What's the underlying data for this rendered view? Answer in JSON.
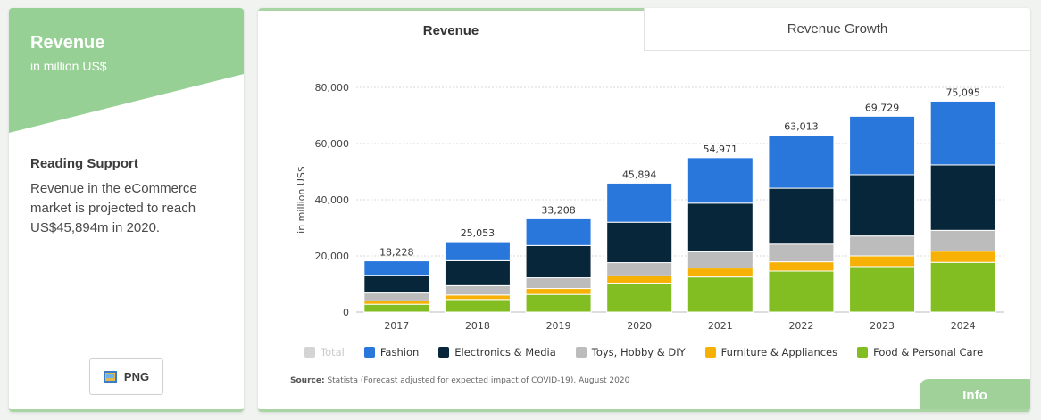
{
  "left_panel": {
    "title": "Revenue",
    "subtitle": "in million US$",
    "support_heading": "Reading Support",
    "support_text": "Revenue in the eCommerce market is projected to reach US$45,894m in 2020.",
    "png_label": "PNG",
    "banner_color": "#97d095"
  },
  "tabs": [
    {
      "label": "Revenue",
      "active": true
    },
    {
      "label": "Revenue Growth",
      "active": false
    }
  ],
  "source": {
    "label": "Source:",
    "text": "Statista (Forecast adjusted for expected impact of COVID-19), August 2020"
  },
  "info_label": "Info",
  "chart_data": {
    "type": "bar",
    "stacked": true,
    "title": "",
    "xlabel": "",
    "ylabel": "in million US$",
    "ylim": [
      0,
      80000
    ],
    "yticks": [
      0,
      20000,
      40000,
      60000,
      80000
    ],
    "ytick_labels": [
      "0",
      "20,000",
      "40,000",
      "60,000",
      "80,000"
    ],
    "grid": "horizontal dotted",
    "legend_position": "bottom",
    "categories": [
      "2017",
      "2018",
      "2019",
      "2020",
      "2021",
      "2022",
      "2023",
      "2024"
    ],
    "totals": [
      18228,
      25053,
      33208,
      45894,
      54971,
      63013,
      69729,
      75095
    ],
    "total_labels": [
      "18,228",
      "25,053",
      "33,208",
      "45,894",
      "54,971",
      "63,013",
      "69,729",
      "75,095"
    ],
    "legend": [
      {
        "name": "Total",
        "color": "#d4d4d4",
        "muted": true
      },
      {
        "name": "Fashion",
        "color": "#2a77dc"
      },
      {
        "name": "Electronics & Media",
        "color": "#08263a"
      },
      {
        "name": "Toys, Hobby & DIY",
        "color": "#bcbcbc"
      },
      {
        "name": "Furniture & Appliances",
        "color": "#f7b104"
      },
      {
        "name": "Food & Personal Care",
        "color": "#82be22"
      }
    ],
    "series": [
      {
        "name": "Food & Personal Care",
        "color": "#82be22",
        "values": [
          2800,
          4500,
          6300,
          10300,
          12500,
          14600,
          16200,
          17700
        ]
      },
      {
        "name": "Furniture & Appliances",
        "color": "#f7b104",
        "values": [
          1200,
          1600,
          2100,
          2600,
          3200,
          3300,
          3800,
          4000
        ]
      },
      {
        "name": "Toys, Hobby & DIY",
        "color": "#bcbcbc",
        "values": [
          2800,
          3300,
          3800,
          4700,
          5800,
          6300,
          7100,
          7400
        ]
      },
      {
        "name": "Electronics & Media",
        "color": "#08263a",
        "values": [
          6300,
          8900,
          11500,
          14400,
          17300,
          19900,
          21800,
          23300
        ]
      },
      {
        "name": "Fashion",
        "color": "#2a77dc",
        "values": [
          5128,
          6753,
          9508,
          13894,
          16171,
          18913,
          20829,
          22695
        ]
      }
    ]
  }
}
